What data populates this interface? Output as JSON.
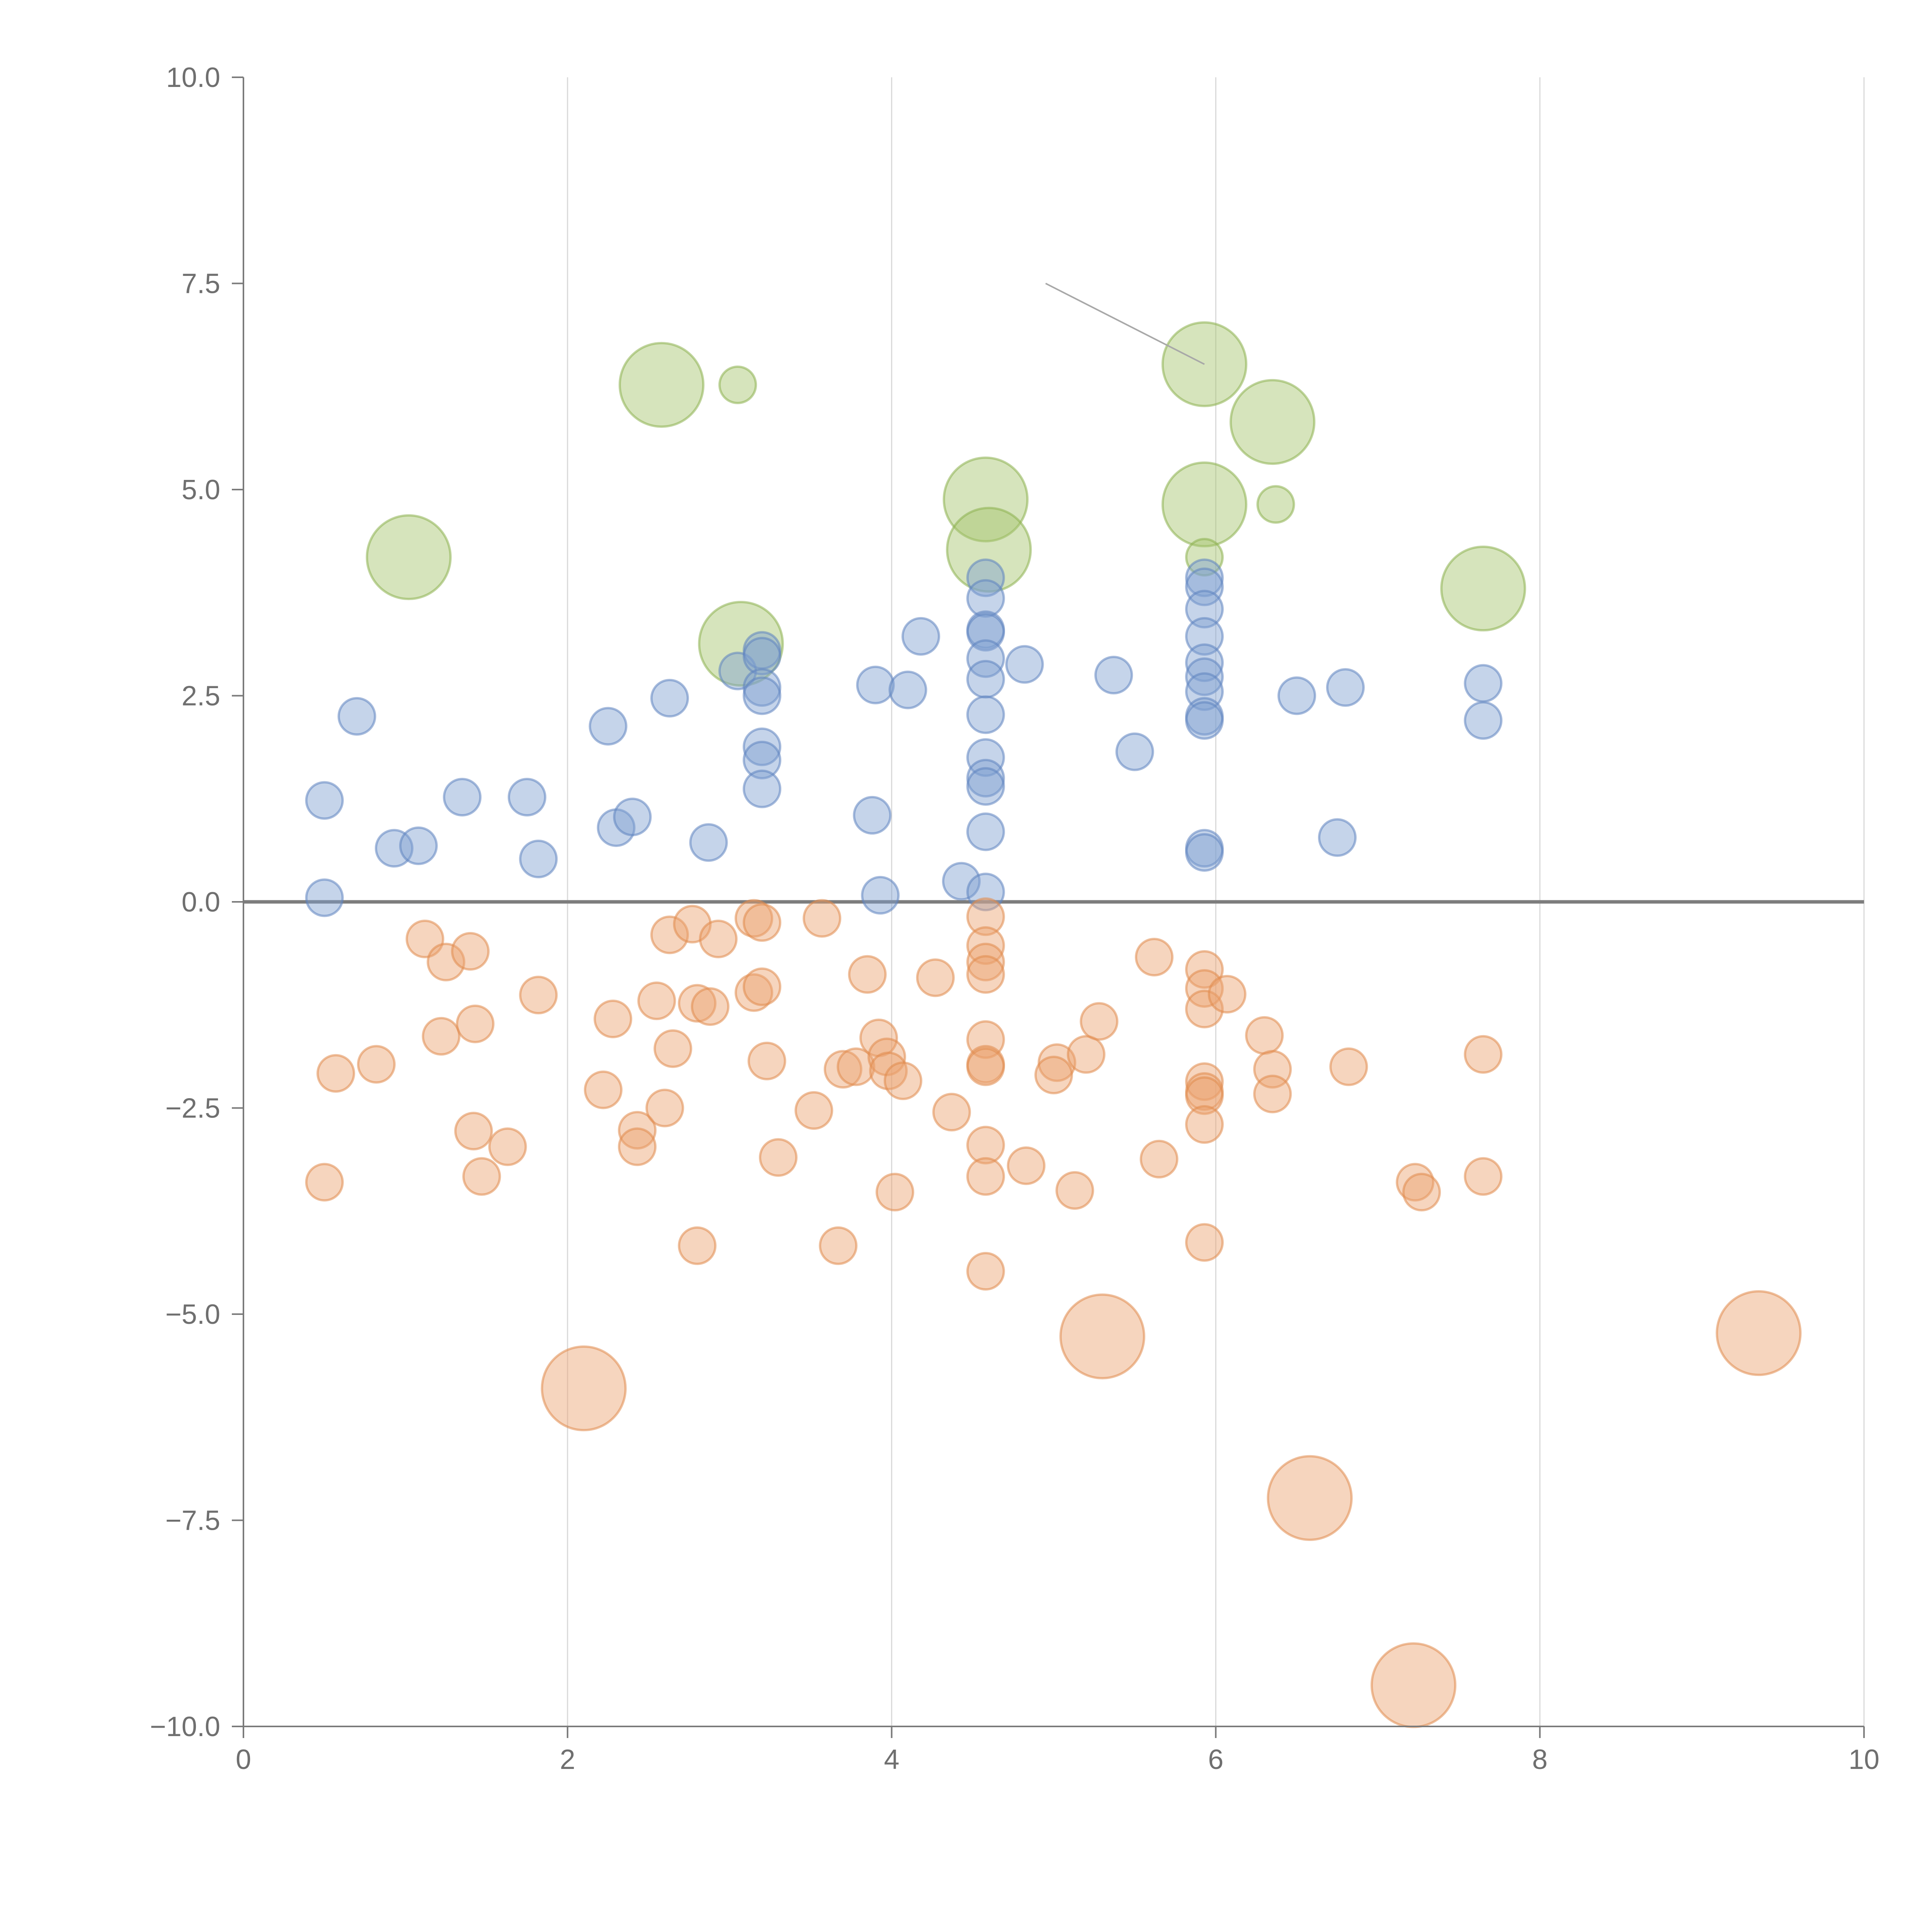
{
  "chart_data": {
    "type": "scatter",
    "title": "",
    "xlabel": "",
    "ylabel": "",
    "xlim": [
      0,
      10
    ],
    "ylim": [
      -10,
      10
    ],
    "x_ticks": [
      "0",
      "2",
      "4",
      "6",
      "8",
      "10"
    ],
    "y_ticks": [
      "10.0",
      "7.5",
      "5.0",
      "2.5",
      "0.0",
      "−2.5",
      "−5.0",
      "−7.5",
      "−10.0"
    ],
    "grid": "vertical",
    "legend": "none",
    "marker_sizes": {
      "small": 1,
      "large": 2.3
    },
    "series": [
      {
        "name": "green",
        "color": "#a3c46a",
        "stroke": "#8cb04f",
        "points": [
          [
            2.58,
            6.27,
            2.3
          ],
          [
            3.05,
            6.27,
            1
          ],
          [
            1.02,
            4.18,
            2.3
          ],
          [
            3.07,
            3.13,
            2.3
          ],
          [
            4.58,
            4.88,
            2.3
          ],
          [
            4.6,
            4.27,
            2.3
          ],
          [
            5.93,
            6.52,
            2.3
          ],
          [
            6.35,
            5.82,
            2.3
          ],
          [
            5.93,
            4.82,
            2.3
          ],
          [
            6.37,
            4.82,
            1
          ],
          [
            5.93,
            4.18,
            1
          ],
          [
            7.65,
            3.8,
            2.3
          ]
        ]
      },
      {
        "name": "blue",
        "color": "#7e9fd0",
        "stroke": "#5f83c0",
        "points": [
          [
            0.5,
            1.23,
            1
          ],
          [
            0.7,
            2.25,
            1
          ],
          [
            0.93,
            0.65,
            1
          ],
          [
            1.08,
            0.68,
            1
          ],
          [
            0.5,
            0.05,
            1
          ],
          [
            1.35,
            1.27,
            1
          ],
          [
            1.75,
            1.27,
            1
          ],
          [
            1.82,
            0.52,
            1
          ],
          [
            2.25,
            2.13,
            1
          ],
          [
            2.3,
            0.9,
            1
          ],
          [
            2.4,
            1.03,
            1
          ],
          [
            2.63,
            2.47,
            1
          ],
          [
            2.87,
            0.72,
            1
          ],
          [
            3.05,
            2.8,
            1
          ],
          [
            3.2,
            3.05,
            1
          ],
          [
            3.2,
            2.98,
            1
          ],
          [
            3.2,
            2.6,
            1
          ],
          [
            3.2,
            2.5,
            1
          ],
          [
            3.2,
            1.88,
            1
          ],
          [
            3.2,
            1.72,
            1
          ],
          [
            3.2,
            1.37,
            1
          ],
          [
            3.9,
            2.63,
            1
          ],
          [
            3.88,
            1.05,
            1
          ],
          [
            3.93,
            0.08,
            1
          ],
          [
            4.1,
            2.57,
            1
          ],
          [
            4.18,
            3.22,
            1
          ],
          [
            4.43,
            0.25,
            1
          ],
          [
            4.58,
            3.93,
            1
          ],
          [
            4.58,
            3.68,
            1
          ],
          [
            4.58,
            3.3,
            1
          ],
          [
            4.58,
            3.27,
            1
          ],
          [
            4.58,
            2.95,
            1
          ],
          [
            4.58,
            2.7,
            1
          ],
          [
            4.58,
            2.27,
            1
          ],
          [
            4.58,
            1.75,
            1
          ],
          [
            4.58,
            1.5,
            1
          ],
          [
            4.58,
            1.4,
            1
          ],
          [
            4.58,
            0.85,
            1
          ],
          [
            4.58,
            0.12,
            1
          ],
          [
            4.82,
            2.88,
            1
          ],
          [
            5.37,
            2.75,
            1
          ],
          [
            5.5,
            1.82,
            1
          ],
          [
            5.93,
            3.93,
            1
          ],
          [
            5.93,
            3.82,
            1
          ],
          [
            5.93,
            3.55,
            1
          ],
          [
            5.93,
            3.22,
            1
          ],
          [
            5.93,
            2.9,
            1
          ],
          [
            5.93,
            2.73,
            1
          ],
          [
            5.93,
            2.55,
            1
          ],
          [
            5.93,
            2.25,
            1
          ],
          [
            5.93,
            2.2,
            1
          ],
          [
            5.93,
            0.65,
            1
          ],
          [
            5.93,
            0.6,
            1
          ],
          [
            6.5,
            2.5,
            1
          ],
          [
            6.75,
            0.78,
            1
          ],
          [
            6.8,
            2.6,
            1
          ],
          [
            7.65,
            2.65,
            1
          ],
          [
            7.65,
            2.2,
            1
          ]
        ]
      },
      {
        "name": "orange",
        "color": "#eba26e",
        "stroke": "#e08a4c",
        "points": [
          [
            1.12,
            -0.45,
            1
          ],
          [
            1.25,
            -0.73,
            1
          ],
          [
            1.4,
            -0.6,
            1
          ],
          [
            1.22,
            -1.63,
            1
          ],
          [
            1.43,
            -1.48,
            1
          ],
          [
            1.82,
            -1.13,
            1
          ],
          [
            0.57,
            -2.08,
            1
          ],
          [
            0.82,
            -1.97,
            1
          ],
          [
            0.5,
            -3.4,
            1
          ],
          [
            1.42,
            -2.78,
            1
          ],
          [
            1.47,
            -3.33,
            1
          ],
          [
            1.63,
            -2.97,
            1
          ],
          [
            2.22,
            -2.28,
            1
          ],
          [
            2.28,
            -1.42,
            1
          ],
          [
            2.43,
            -2.77,
            1
          ],
          [
            2.43,
            -2.97,
            1
          ],
          [
            2.55,
            -1.2,
            1
          ],
          [
            2.63,
            -0.4,
            1
          ],
          [
            2.65,
            -1.78,
            1
          ],
          [
            2.6,
            -2.5,
            1
          ],
          [
            2.77,
            -0.27,
            1
          ],
          [
            2.8,
            -4.17,
            1
          ],
          [
            2.8,
            -1.23,
            1
          ],
          [
            2.88,
            -1.27,
            1
          ],
          [
            2.93,
            -0.45,
            1
          ],
          [
            3.15,
            -0.2,
            1
          ],
          [
            3.2,
            -0.25,
            1
          ],
          [
            3.15,
            -1.1,
            1
          ],
          [
            3.2,
            -1.03,
            1
          ],
          [
            3.23,
            -1.93,
            1
          ],
          [
            3.3,
            -3.1,
            1
          ],
          [
            3.52,
            -2.53,
            1
          ],
          [
            3.57,
            -0.2,
            1
          ],
          [
            3.67,
            -4.17,
            1
          ],
          [
            3.7,
            -2.03,
            1
          ],
          [
            3.78,
            -2.0,
            1
          ],
          [
            3.85,
            -0.88,
            1
          ],
          [
            3.92,
            -1.65,
            1
          ],
          [
            3.97,
            -1.88,
            1
          ],
          [
            3.98,
            -2.05,
            1
          ],
          [
            4.07,
            -2.17,
            1
          ],
          [
            4.02,
            -3.52,
            1
          ],
          [
            4.27,
            -0.92,
            1
          ],
          [
            4.37,
            -2.55,
            1
          ],
          [
            4.58,
            -0.18,
            1
          ],
          [
            4.58,
            -0.53,
            1
          ],
          [
            4.58,
            -0.73,
            1
          ],
          [
            4.58,
            -0.88,
            1
          ],
          [
            4.58,
            -1.67,
            1
          ],
          [
            4.58,
            -1.97,
            1
          ],
          [
            4.58,
            -2.0,
            1
          ],
          [
            4.58,
            -2.95,
            1
          ],
          [
            4.58,
            -3.33,
            1
          ],
          [
            4.58,
            -4.48,
            1
          ],
          [
            4.83,
            -3.2,
            1
          ],
          [
            5.02,
            -1.95,
            1
          ],
          [
            5.0,
            -2.1,
            1
          ],
          [
            5.13,
            -3.5,
            1
          ],
          [
            5.2,
            -1.85,
            1
          ],
          [
            5.28,
            -1.45,
            1
          ],
          [
            5.62,
            -0.67,
            1
          ],
          [
            5.65,
            -3.12,
            1
          ],
          [
            5.93,
            -0.82,
            1
          ],
          [
            5.93,
            -1.05,
            1
          ],
          [
            5.93,
            -1.3,
            1
          ],
          [
            5.93,
            -2.18,
            1
          ],
          [
            5.93,
            -2.3,
            1
          ],
          [
            5.93,
            -2.35,
            1
          ],
          [
            5.93,
            -2.7,
            1
          ],
          [
            5.93,
            -4.13,
            1
          ],
          [
            6.07,
            -1.12,
            1
          ],
          [
            6.3,
            -1.62,
            1
          ],
          [
            6.35,
            -2.03,
            1
          ],
          [
            6.35,
            -2.33,
            1
          ],
          [
            6.82,
            -2.0,
            1
          ],
          [
            7.23,
            -3.4,
            1
          ],
          [
            7.27,
            -3.52,
            1
          ],
          [
            7.65,
            -1.85,
            1
          ],
          [
            7.65,
            -3.33,
            1
          ],
          [
            2.1,
            -5.9,
            2.3
          ],
          [
            5.3,
            -5.27,
            2.3
          ],
          [
            6.58,
            -7.23,
            2.3
          ],
          [
            7.22,
            -9.5,
            2.3
          ],
          [
            9.35,
            -5.23,
            2.3
          ]
        ]
      }
    ],
    "annotation": {
      "text": "",
      "point": [
        5.93,
        6.52
      ],
      "anchor": [
        4.95,
        7.5
      ]
    }
  }
}
